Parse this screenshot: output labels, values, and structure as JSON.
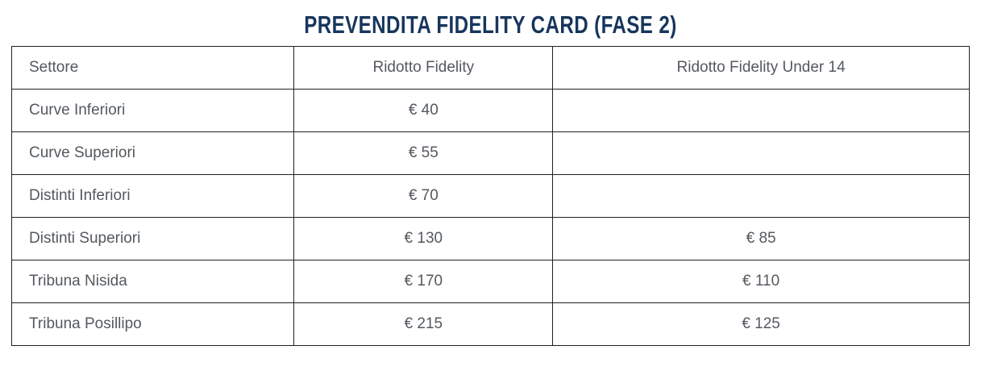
{
  "title": "PREVENDITA FIDELITY CARD (FASE 2)",
  "colors": {
    "title": "#17365c",
    "text": "#54595f",
    "border": "#1f2126",
    "background": "#ffffff"
  },
  "table": {
    "columns": {
      "settore": "Settore",
      "ridotto": "Ridotto Fidelity",
      "under14": "Ridotto Fidelity Under 14"
    },
    "rows": [
      {
        "settore": "Curve Inferiori",
        "ridotto": "€ 40",
        "under14": ""
      },
      {
        "settore": "Curve Superiori",
        "ridotto": "€ 55",
        "under14": ""
      },
      {
        "settore": "Distinti Inferiori",
        "ridotto": "€ 70",
        "under14": ""
      },
      {
        "settore": "Distinti Superiori",
        "ridotto": "€ 130",
        "under14": "€ 85"
      },
      {
        "settore": "Tribuna Nisida",
        "ridotto": "€ 170",
        "under14": "€ 110"
      },
      {
        "settore": "Tribuna Posillipo",
        "ridotto": "€ 215",
        "under14": "€ 125"
      }
    ]
  }
}
